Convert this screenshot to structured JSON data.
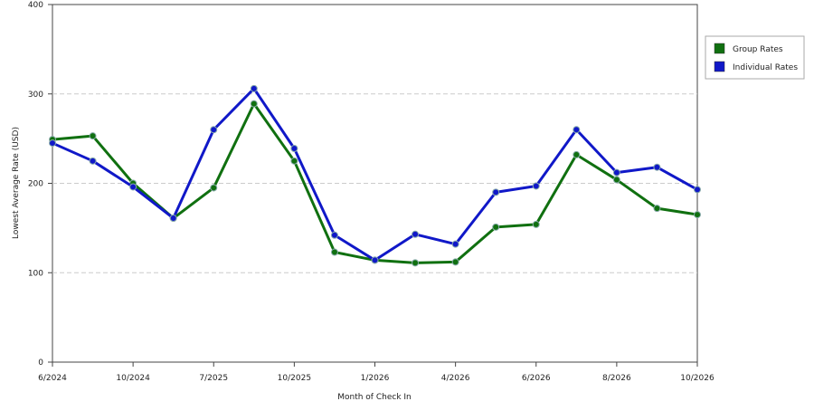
{
  "chart_data": {
    "type": "line",
    "x_label": "Month of Check In",
    "y_label": "Lowest Average Rate (USD)",
    "categories": [
      "6/2024",
      null,
      "10/2024",
      null,
      "7/2025",
      null,
      "10/2025",
      null,
      "1/2026",
      null,
      "4/2026",
      null,
      "6/2026",
      null,
      "8/2026",
      null,
      "10/2026"
    ],
    "series": [
      {
        "name": "Group Rates",
        "color": "#107010",
        "values": [
          249,
          253,
          200,
          161,
          195,
          289,
          225,
          123,
          114,
          111,
          112,
          151,
          154,
          232,
          204,
          172,
          165
        ]
      },
      {
        "name": "Individual Rates",
        "color": "#1018c8",
        "values": [
          245,
          225,
          196,
          161,
          260,
          306,
          239,
          142,
          114,
          143,
          132,
          190,
          197,
          260,
          212,
          218,
          193
        ]
      }
    ],
    "ylim": [
      0,
      400
    ],
    "yticks": [
      0,
      100,
      200,
      300,
      400
    ],
    "grid": true,
    "legend": "right"
  }
}
